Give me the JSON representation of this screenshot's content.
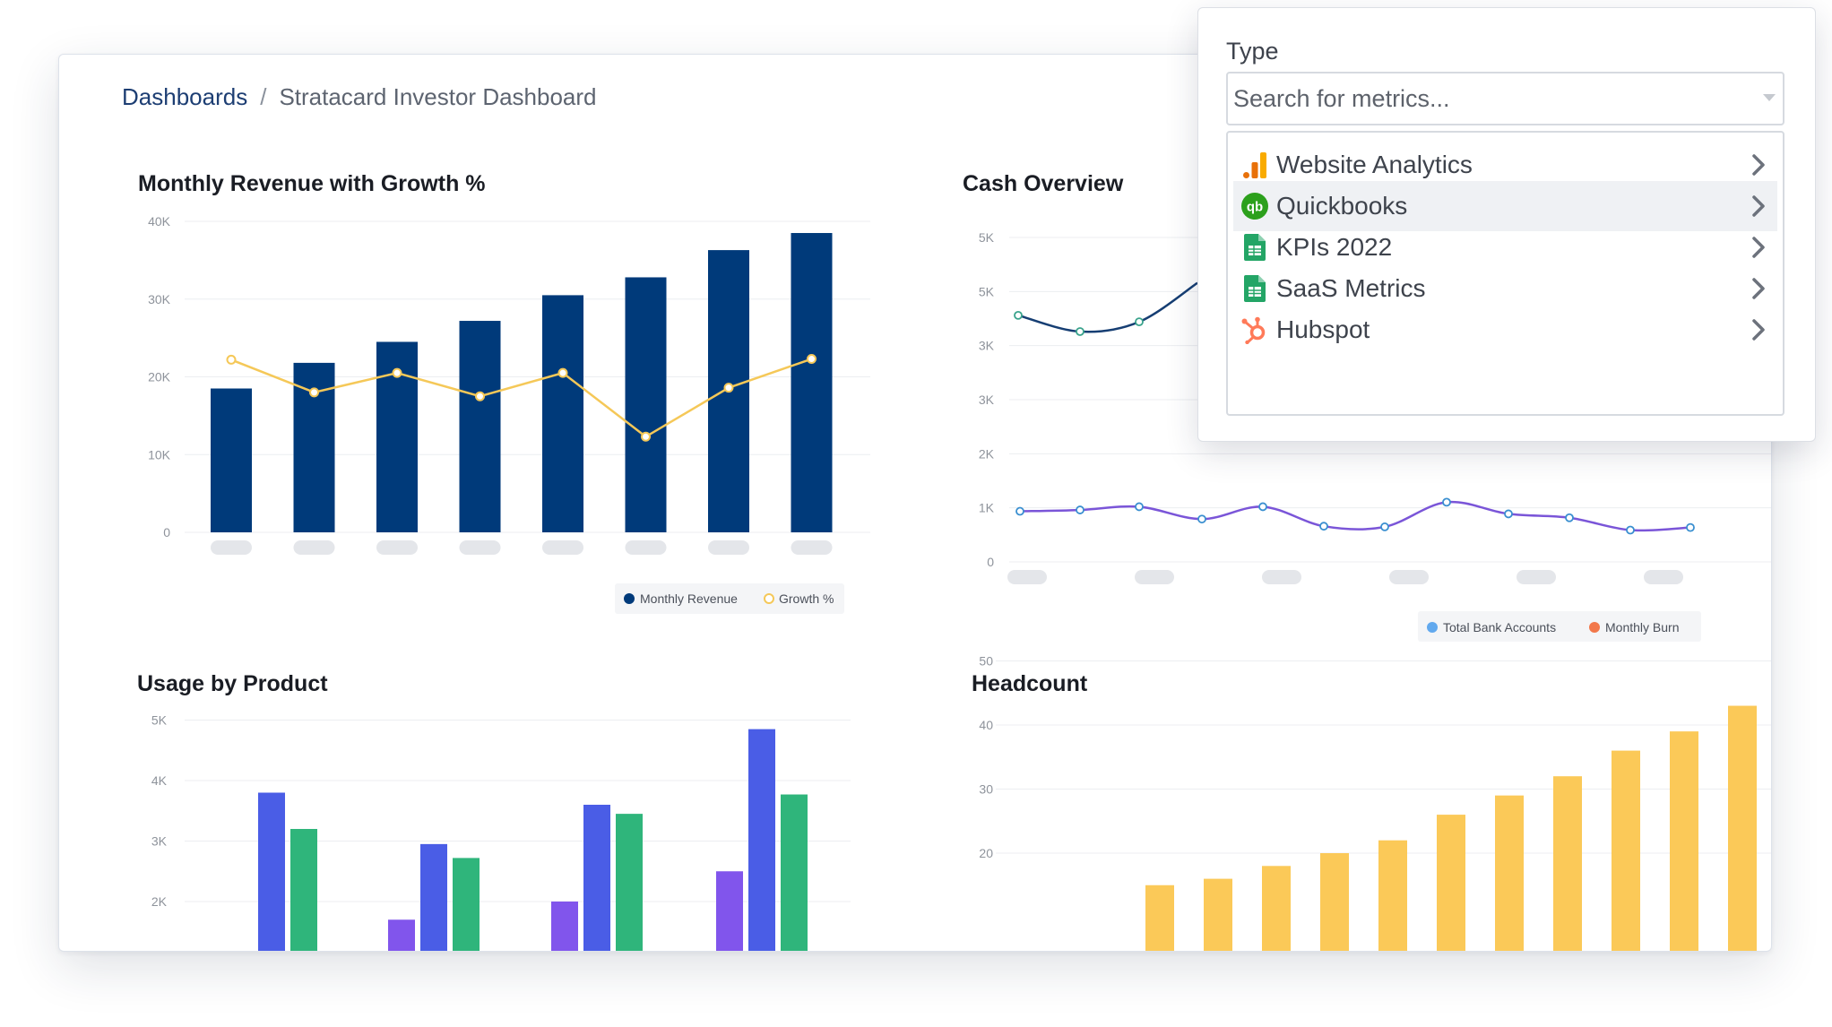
{
  "breadcrumb": {
    "root": "Dashboards",
    "separator": "/",
    "current": "Stratacard Investor Dashboard"
  },
  "colors": {
    "navy": "#003a7a",
    "gold": "#f5c858",
    "cash_line": "#163e73",
    "cash_line2": "#7a55d8",
    "usage_purple": "#8155ec",
    "usage_blue": "#4a5de6",
    "usage_green": "#2fb57b",
    "headcount": "#fbc958",
    "legend_bank": "#62a9ee",
    "legend_burn": "#f2784b"
  },
  "charts": {
    "revenue": {
      "title": "Monthly Revenue with Growth %",
      "legend": [
        "Monthly Revenue",
        "Growth %"
      ]
    },
    "cash": {
      "title": "Cash Overview",
      "legend": [
        "Total Bank Accounts",
        "Monthly Burn"
      ]
    },
    "usage": {
      "title": "Usage by Product"
    },
    "headcount": {
      "title": "Headcount"
    }
  },
  "chart_data": [
    {
      "type": "bar",
      "title": "Monthly Revenue with Growth %",
      "ylim": [
        0,
        40000
      ],
      "yticks": [
        "0",
        "10K",
        "20K",
        "30K",
        "40K"
      ],
      "series": [
        {
          "name": "Monthly Revenue",
          "type": "bar",
          "values": [
            18500,
            21800,
            24500,
            27200,
            30500,
            32800,
            36300,
            38500
          ]
        },
        {
          "name": "Growth %",
          "type": "line",
          "values": [
            22200,
            18000,
            20500,
            17500,
            20500,
            12300,
            18600,
            22300
          ]
        }
      ]
    },
    {
      "type": "line",
      "title": "Cash Overview",
      "ylim": [
        0,
        5000
      ],
      "yticks": [
        "0",
        "1K",
        "2K",
        "3K",
        "3K",
        "5K",
        "5K"
      ],
      "series": [
        {
          "name": "Total Bank Accounts",
          "values": [
            3800,
            3550,
            3700,
            4300
          ]
        },
        {
          "name": "Monthly Burn",
          "values": [
            780,
            800,
            850,
            660,
            850,
            550,
            540,
            920,
            740,
            680,
            490,
            530
          ]
        }
      ]
    },
    {
      "type": "bar",
      "title": "Usage by Product",
      "yticks": [
        "2K",
        "3K",
        "4K",
        "5K"
      ],
      "series": [
        {
          "values": [
            null,
            1700,
            2000,
            2500
          ]
        },
        {
          "values": [
            3800,
            2950,
            3600,
            4850
          ]
        },
        {
          "values": [
            3200,
            2720,
            3450,
            3770
          ]
        }
      ]
    },
    {
      "type": "bar",
      "title": "Headcount",
      "yticks": [
        "20",
        "30",
        "40",
        "50"
      ],
      "values": [
        15,
        16,
        18,
        20,
        22,
        26,
        29,
        32,
        36,
        39,
        43
      ]
    }
  ],
  "dropdown": {
    "label": "Type",
    "placeholder": "Search for metrics...",
    "items": [
      {
        "label": "Website Analytics",
        "icon": "analytics-bars-icon"
      },
      {
        "label": "Quickbooks",
        "icon": "quickbooks-icon"
      },
      {
        "label": "KPIs 2022",
        "icon": "google-sheets-icon"
      },
      {
        "label": "SaaS Metrics",
        "icon": "google-sheets-icon"
      },
      {
        "label": "Hubspot",
        "icon": "hubspot-icon"
      }
    ]
  }
}
